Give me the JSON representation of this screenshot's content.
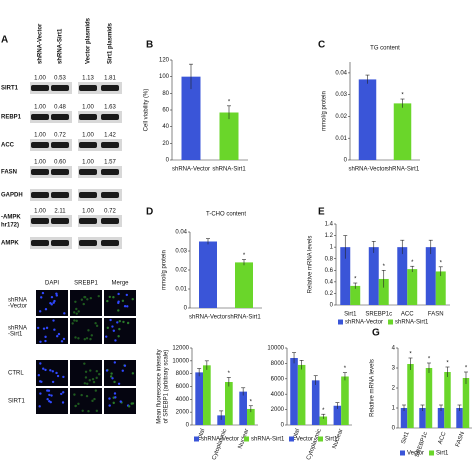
{
  "chart_data": [
    {
      "type": "bar",
      "panel": "B",
      "ylabel": "Cell viability (%)",
      "categories": [
        "shRNA-Vector",
        "shRNA-Sirt1"
      ],
      "values": [
        100,
        57
      ],
      "errors": [
        15,
        8
      ],
      "significance": [
        null,
        "*"
      ],
      "colors": [
        "#3a55d8",
        "#6ad62a"
      ],
      "ylim": [
        0,
        120
      ],
      "yticks": [
        0,
        20,
        40,
        60,
        80,
        100,
        120
      ]
    },
    {
      "type": "bar",
      "panel": "C",
      "title": "TG content",
      "ylabel": "mmol/g protein",
      "categories": [
        "shRNA-Vector",
        "shRNA-Sirt1"
      ],
      "values": [
        0.037,
        0.026
      ],
      "errors": [
        0.002,
        0.002
      ],
      "significance": [
        null,
        "*"
      ],
      "colors": [
        "#3a55d8",
        "#6ad62a"
      ],
      "ylim": [
        0,
        0.045
      ],
      "yticks": [
        0,
        0.01,
        0.02,
        0.03,
        0.04
      ]
    },
    {
      "type": "bar",
      "panel": "D",
      "title": "T-CHO content",
      "ylabel": "mmol/g protein",
      "categories": [
        "shRNA-Vector",
        "shRNA-Sirt1"
      ],
      "values": [
        0.035,
        0.024
      ],
      "errors": [
        0.0015,
        0.0015
      ],
      "significance": [
        null,
        "*"
      ],
      "colors": [
        "#3a55d8",
        "#6ad62a"
      ],
      "ylim": [
        0,
        0.04
      ],
      "yticks": [
        0,
        0.01,
        0.02,
        0.03,
        0.04
      ]
    },
    {
      "type": "bar",
      "panel": "E",
      "ylabel": "Relative mRNA levels",
      "categories": [
        "Sirt1",
        "SREBP1c",
        "ACC",
        "FASN"
      ],
      "series": [
        {
          "name": "shRNA-Vector",
          "color": "#3a55d8",
          "values": [
            1,
            1,
            1,
            1
          ],
          "errors": [
            0.2,
            0.1,
            0.12,
            0.12
          ],
          "significance": [
            null,
            null,
            null,
            null
          ]
        },
        {
          "name": "shRNA-Sirt1",
          "color": "#6ad62a",
          "values": [
            0.33,
            0.45,
            0.62,
            0.58
          ],
          "errors": [
            0.05,
            0.15,
            0.05,
            0.08
          ],
          "significance": [
            "*",
            "*",
            "*",
            "*"
          ]
        }
      ],
      "ylim": [
        0,
        1.4
      ],
      "yticks": [
        0,
        0.2,
        0.4,
        0.6,
        0.8,
        1,
        1.2,
        1.4
      ],
      "legend": "bottom"
    },
    {
      "type": "bar",
      "ylabel": [
        "Mean fluorescence intensity",
        "of SREBP1 (arbitrary scale)"
      ],
      "categories": [
        "Total",
        "Cytoplasmic",
        "Nuclear"
      ],
      "series": [
        {
          "name": "shRNA-Vector",
          "color": "#3a55d8",
          "values": [
            8200,
            1500,
            5200
          ],
          "errors": [
            600,
            700,
            600
          ],
          "significance": [
            null,
            null,
            null
          ]
        },
        {
          "name": "shRNA-Sirt1",
          "color": "#6ad62a",
          "values": [
            9300,
            6700,
            2500
          ],
          "errors": [
            700,
            700,
            500
          ],
          "significance": [
            null,
            "*",
            "*"
          ]
        }
      ],
      "ylim": [
        0,
        12000
      ],
      "yticks": [
        0,
        2000,
        4000,
        6000,
        8000,
        10000,
        12000
      ],
      "legend": "bottom"
    },
    {
      "type": "bar",
      "categories": [
        "Total",
        "Cytoplasmic",
        "Nuclear"
      ],
      "series": [
        {
          "name": "Vector",
          "color": "#3a55d8",
          "values": [
            8700,
            5800,
            2500
          ],
          "errors": [
            700,
            600,
            400
          ],
          "significance": [
            null,
            null,
            null
          ]
        },
        {
          "name": "Sirt1",
          "color": "#6ad62a",
          "values": [
            7800,
            1100,
            6300
          ],
          "errors": [
            600,
            300,
            500
          ],
          "significance": [
            null,
            "*",
            "*"
          ]
        }
      ],
      "ylim": [
        0,
        10000
      ],
      "yticks": [
        0,
        2000,
        4000,
        6000,
        8000,
        10000
      ],
      "legend": "bottom"
    },
    {
      "type": "bar",
      "panel": "G",
      "ylabel": "Relative mRNA levels",
      "categories": [
        "Sirt1",
        "SREBP1c",
        "ACC",
        "FASN"
      ],
      "series": [
        {
          "name": "Vector",
          "color": "#3a55d8",
          "values": [
            1,
            1,
            1,
            1
          ],
          "errors": [
            0.15,
            0.15,
            0.15,
            0.15
          ],
          "significance": [
            null,
            null,
            null,
            null
          ]
        },
        {
          "name": "Sirt1",
          "color": "#6ad62a",
          "values": [
            3.2,
            3.0,
            2.8,
            2.5
          ],
          "errors": [
            0.3,
            0.25,
            0.25,
            0.3
          ],
          "significance": [
            "*",
            "*",
            "*",
            "*"
          ]
        }
      ],
      "ylim": [
        0,
        4
      ],
      "yticks": [
        0,
        1,
        2,
        3,
        4
      ],
      "legend": "bottom"
    }
  ],
  "blot": {
    "panel": "A",
    "lanes": [
      "shRNA-Vector",
      "shRNA-Sirt1",
      "Vector plasmids",
      "Sirt1 plasmids"
    ],
    "rows": [
      {
        "label": [
          "SIRT1"
        ],
        "quant": [
          "1.00",
          "0.53",
          "1.13",
          "1.81"
        ]
      },
      {
        "label": [
          "REBP1"
        ],
        "quant": [
          "1.00",
          "0.48",
          "1.00",
          "1.63"
        ]
      },
      {
        "label": [
          "ACC"
        ],
        "quant": [
          "1.00",
          "0.72",
          "1.00",
          "1.42"
        ]
      },
      {
        "label": [
          "FASN"
        ],
        "quant": [
          "1.00",
          "0.60",
          "1.00",
          "1.57"
        ]
      },
      {
        "label": [
          "GAPDH"
        ]
      },
      {
        "label": [
          "-AMPK",
          "hr172)"
        ],
        "quant": [
          "1.00",
          "2.11",
          "1.00",
          "0.72"
        ]
      },
      {
        "label": [
          "AMPK"
        ]
      }
    ]
  },
  "images": {
    "columns": [
      "DAPI",
      "SREBP1",
      "Merge"
    ],
    "rows": [
      [
        "shRNA",
        "-Vector"
      ],
      [
        "shRNA",
        "-Sirt1"
      ],
      [
        "CTRL"
      ],
      [
        "SIRT1"
      ]
    ]
  }
}
